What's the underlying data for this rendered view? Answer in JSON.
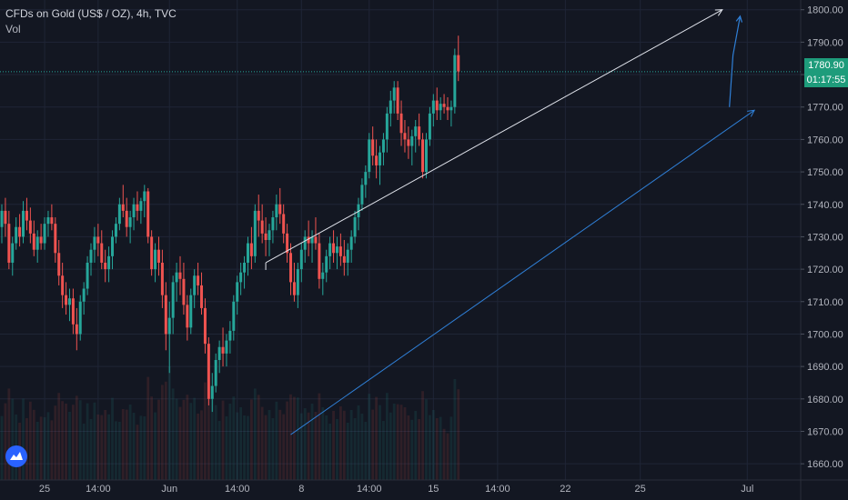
{
  "header": {
    "title": "CFDs on Gold (US$ / OZ), 4h, TVC",
    "indicator": "Vol"
  },
  "price_tag": {
    "price": "1780.90",
    "countdown": "01:17:55"
  },
  "colors": {
    "up": "#26a69a",
    "down": "#ef5350",
    "background": "#131722",
    "grid": "#1f2536",
    "axis_text": "#b2b5be",
    "resistance_line": "#e0e3eb",
    "support_line": "#2f7fd6",
    "price_tag": "#1e9c7b"
  },
  "logo_icon": "tradingview-logo-icon",
  "chart_data": {
    "type": "candlestick",
    "title": "CFDs on Gold (US$ / OZ), 4h, TVC",
    "ylim": [
      1655,
      1803
    ],
    "yticks": [
      1660,
      1670,
      1680,
      1690,
      1700,
      1710,
      1720,
      1730,
      1740,
      1750,
      1760,
      1770,
      1780,
      1790,
      1800
    ],
    "ytick_labels": [
      "1660.00",
      "1670.00",
      "1680.00",
      "1690.00",
      "1700.00",
      "1710.00",
      "1720.00",
      "1730.00",
      "1740.00",
      "1750.00",
      "1760.00",
      "1770.00",
      "1780.00",
      "1790.00",
      "1800.00"
    ],
    "xticks": [
      {
        "label": "25",
        "bar": 12
      },
      {
        "label": "14:00",
        "bar": 27
      },
      {
        "label": "Jun",
        "bar": 47
      },
      {
        "label": "14:00",
        "bar": 66
      },
      {
        "label": "8",
        "bar": 84
      },
      {
        "label": "14:00",
        "bar": 103
      },
      {
        "label": "15",
        "bar": 121
      },
      {
        "label": "14:00",
        "bar": 139
      },
      {
        "label": "22",
        "bar": 158
      },
      {
        "label": "25",
        "bar": 179
      },
      {
        "label": "Jul",
        "bar": 209
      }
    ],
    "grid": true,
    "last_price": 1780.9,
    "lines": [
      {
        "name": "resistance",
        "from": {
          "bar": 74,
          "price": 1722
        },
        "to": {
          "bar": 202,
          "price": 1800
        }
      },
      {
        "name": "support",
        "from": {
          "bar": 81,
          "price": 1669
        },
        "to": {
          "bar": 211,
          "price": 1769
        }
      },
      {
        "name": "projection",
        "points": [
          {
            "bar": 204,
            "price": 1770
          },
          {
            "bar": 205,
            "price": 1786
          },
          {
            "bar": 207,
            "price": 1798
          }
        ]
      }
    ],
    "candles": [
      [
        1733,
        1740,
        1728,
        1738
      ],
      [
        1738,
        1742,
        1730,
        1734
      ],
      [
        1734,
        1738,
        1720,
        1722
      ],
      [
        1722,
        1730,
        1718,
        1728
      ],
      [
        1728,
        1736,
        1726,
        1733
      ],
      [
        1733,
        1737,
        1727,
        1730
      ],
      [
        1730,
        1741,
        1728,
        1738
      ],
      [
        1738,
        1742,
        1732,
        1735
      ],
      [
        1735,
        1739,
        1728,
        1731
      ],
      [
        1731,
        1735,
        1724,
        1726
      ],
      [
        1726,
        1732,
        1722,
        1730
      ],
      [
        1730,
        1734,
        1726,
        1728
      ],
      [
        1728,
        1736,
        1726,
        1734
      ],
      [
        1734,
        1738,
        1730,
        1736
      ],
      [
        1736,
        1740,
        1732,
        1734
      ],
      [
        1734,
        1736,
        1722,
        1725
      ],
      [
        1725,
        1729,
        1715,
        1718
      ],
      [
        1718,
        1722,
        1708,
        1712
      ],
      [
        1712,
        1716,
        1706,
        1709
      ],
      [
        1709,
        1714,
        1704,
        1711
      ],
      [
        1711,
        1714,
        1700,
        1703
      ],
      [
        1703,
        1708,
        1695,
        1700
      ],
      [
        1700,
        1712,
        1698,
        1710
      ],
      [
        1710,
        1716,
        1706,
        1714
      ],
      [
        1714,
        1724,
        1712,
        1722
      ],
      [
        1722,
        1728,
        1718,
        1726
      ],
      [
        1726,
        1733,
        1722,
        1730
      ],
      [
        1730,
        1734,
        1724,
        1728
      ],
      [
        1728,
        1732,
        1720,
        1722
      ],
      [
        1722,
        1726,
        1716,
        1720
      ],
      [
        1720,
        1727,
        1716,
        1724
      ],
      [
        1724,
        1732,
        1720,
        1730
      ],
      [
        1730,
        1736,
        1728,
        1734
      ],
      [
        1734,
        1742,
        1732,
        1740
      ],
      [
        1740,
        1746,
        1736,
        1738
      ],
      [
        1738,
        1742,
        1730,
        1733
      ],
      [
        1733,
        1738,
        1728,
        1736
      ],
      [
        1736,
        1742,
        1732,
        1740
      ],
      [
        1740,
        1744,
        1735,
        1738
      ],
      [
        1738,
        1742,
        1734,
        1741
      ],
      [
        1741,
        1746,
        1736,
        1744
      ],
      [
        1744,
        1745,
        1728,
        1730
      ],
      [
        1730,
        1732,
        1718,
        1720
      ],
      [
        1720,
        1728,
        1716,
        1726
      ],
      [
        1726,
        1730,
        1718,
        1722
      ],
      [
        1722,
        1726,
        1708,
        1712
      ],
      [
        1712,
        1716,
        1695,
        1700
      ],
      [
        1700,
        1710,
        1688,
        1705
      ],
      [
        1705,
        1718,
        1700,
        1716
      ],
      [
        1716,
        1722,
        1710,
        1719
      ],
      [
        1719,
        1724,
        1712,
        1717
      ],
      [
        1717,
        1722,
        1706,
        1709
      ],
      [
        1709,
        1712,
        1698,
        1702
      ],
      [
        1702,
        1714,
        1700,
        1712
      ],
      [
        1712,
        1720,
        1708,
        1718
      ],
      [
        1718,
        1722,
        1712,
        1715
      ],
      [
        1715,
        1719,
        1706,
        1708
      ],
      [
        1708,
        1711,
        1694,
        1697
      ],
      [
        1697,
        1699,
        1678,
        1680
      ],
      [
        1680,
        1688,
        1676,
        1684
      ],
      [
        1684,
        1694,
        1682,
        1692
      ],
      [
        1692,
        1698,
        1688,
        1696
      ],
      [
        1696,
        1702,
        1690,
        1694
      ],
      [
        1694,
        1700,
        1690,
        1698
      ],
      [
        1698,
        1704,
        1694,
        1701
      ],
      [
        1701,
        1712,
        1698,
        1710
      ],
      [
        1710,
        1718,
        1706,
        1716
      ],
      [
        1716,
        1722,
        1712,
        1719
      ],
      [
        1719,
        1724,
        1714,
        1722
      ],
      [
        1722,
        1730,
        1718,
        1728
      ],
      [
        1728,
        1733,
        1720,
        1724
      ],
      [
        1724,
        1740,
        1722,
        1738
      ],
      [
        1738,
        1743,
        1730,
        1735
      ],
      [
        1735,
        1740,
        1728,
        1731
      ],
      [
        1731,
        1736,
        1724,
        1729
      ],
      [
        1729,
        1734,
        1724,
        1732
      ],
      [
        1732,
        1738,
        1728,
        1736
      ],
      [
        1736,
        1743,
        1732,
        1740
      ],
      [
        1740,
        1745,
        1734,
        1737
      ],
      [
        1737,
        1740,
        1728,
        1731
      ],
      [
        1731,
        1734,
        1722,
        1725
      ],
      [
        1725,
        1728,
        1712,
        1716
      ],
      [
        1716,
        1722,
        1710,
        1712
      ],
      [
        1712,
        1722,
        1708,
        1720
      ],
      [
        1720,
        1728,
        1716,
        1726
      ],
      [
        1726,
        1732,
        1722,
        1730
      ],
      [
        1730,
        1735,
        1724,
        1728
      ],
      [
        1728,
        1732,
        1722,
        1730
      ],
      [
        1730,
        1736,
        1726,
        1728
      ],
      [
        1728,
        1731,
        1714,
        1717
      ],
      [
        1717,
        1722,
        1712,
        1719
      ],
      [
        1719,
        1726,
        1716,
        1724
      ],
      [
        1724,
        1730,
        1720,
        1728
      ],
      [
        1728,
        1732,
        1722,
        1725
      ],
      [
        1725,
        1730,
        1720,
        1727
      ],
      [
        1727,
        1731,
        1721,
        1724
      ],
      [
        1724,
        1729,
        1718,
        1722
      ],
      [
        1722,
        1728,
        1718,
        1726
      ],
      [
        1726,
        1732,
        1722,
        1730
      ],
      [
        1730,
        1738,
        1728,
        1736
      ],
      [
        1736,
        1742,
        1732,
        1740
      ],
      [
        1740,
        1748,
        1738,
        1746
      ],
      [
        1746,
        1752,
        1742,
        1750
      ],
      [
        1750,
        1762,
        1748,
        1760
      ],
      [
        1760,
        1764,
        1752,
        1755
      ],
      [
        1755,
        1760,
        1748,
        1752
      ],
      [
        1752,
        1758,
        1746,
        1756
      ],
      [
        1756,
        1762,
        1752,
        1760
      ],
      [
        1760,
        1770,
        1756,
        1768
      ],
      [
        1768,
        1775,
        1764,
        1772
      ],
      [
        1772,
        1778,
        1768,
        1776
      ],
      [
        1776,
        1778,
        1766,
        1768
      ],
      [
        1768,
        1772,
        1758,
        1762
      ],
      [
        1762,
        1766,
        1756,
        1760
      ],
      [
        1760,
        1764,
        1754,
        1758
      ],
      [
        1758,
        1763,
        1752,
        1761
      ],
      [
        1761,
        1766,
        1756,
        1764
      ],
      [
        1764,
        1768,
        1758,
        1760
      ],
      [
        1760,
        1762,
        1748,
        1750
      ],
      [
        1750,
        1762,
        1748,
        1760
      ],
      [
        1760,
        1770,
        1758,
        1768
      ],
      [
        1768,
        1774,
        1764,
        1772
      ],
      [
        1772,
        1776,
        1766,
        1769
      ],
      [
        1769,
        1773,
        1766,
        1771
      ],
      [
        1771,
        1774,
        1768,
        1770
      ],
      [
        1770,
        1773,
        1766,
        1769
      ],
      [
        1769,
        1772,
        1764,
        1770
      ],
      [
        1770,
        1788,
        1768,
        1786
      ],
      [
        1786,
        1792,
        1778,
        1781
      ]
    ]
  }
}
